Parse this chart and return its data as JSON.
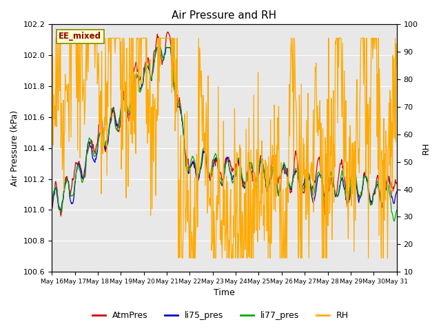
{
  "title": "Air Pressure and RH",
  "xlabel": "Time",
  "ylabel_left": "Air Pressure (kPa)",
  "ylabel_right": "RH",
  "annotation": "EE_mixed",
  "ylim_left": [
    100.6,
    102.2
  ],
  "ylim_right": [
    10,
    100
  ],
  "yticks_left": [
    100.6,
    100.8,
    101.0,
    101.2,
    101.4,
    101.6,
    101.8,
    102.0,
    102.2
  ],
  "yticks_right": [
    10,
    20,
    30,
    40,
    50,
    60,
    70,
    80,
    90,
    100
  ],
  "xtick_labels": [
    "May 16",
    "May 17",
    "May 18",
    "May 19",
    "May 20",
    "May 21",
    "May 22",
    "May 23",
    "May 24",
    "May 25",
    "May 26",
    "May 27",
    "May 28",
    "May 29",
    "May 30",
    "May 31"
  ],
  "legend_labels": [
    "AtmPres",
    "li75_pres",
    "li77_pres",
    "RH"
  ],
  "colors": {
    "AtmPres": "#cc0000",
    "li75_pres": "#0000cc",
    "li77_pres": "#00aa00",
    "RH": "#ffaa00"
  },
  "background_color": "#e8e8e8",
  "n_points": 720,
  "seed": 42
}
